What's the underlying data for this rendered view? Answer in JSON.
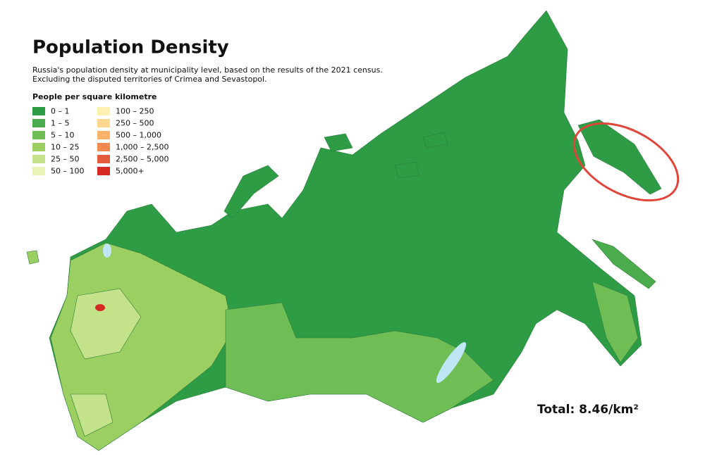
{
  "header": {
    "title": "Population Density",
    "subtitle": [
      "Russia's population density at municipality level, based on the results of the 2021 census.",
      "Excluding the disputed territories of Crimea and Sevastopol."
    ]
  },
  "legend": {
    "title": "People per square kilometre",
    "items": [
      {
        "label": "0 – 1",
        "color": "#2e9c45"
      },
      {
        "label": "1 – 5",
        "color": "#4aac4c"
      },
      {
        "label": "5 – 10",
        "color": "#6fbe55"
      },
      {
        "label": "10 – 25",
        "color": "#9ccf62"
      },
      {
        "label": "25 – 50",
        "color": "#c4e28a"
      },
      {
        "label": "50 – 100",
        "color": "#e8f3b6"
      },
      {
        "label": "100 – 250",
        "color": "#fdf0b0"
      },
      {
        "label": "250 – 500",
        "color": "#fdd690"
      },
      {
        "label": "500 – 1,000",
        "color": "#f9b26a"
      },
      {
        "label": "1,000 – 2,500",
        "color": "#f08a4e"
      },
      {
        "label": "2,500 – 5,000",
        "color": "#e65a3c"
      },
      {
        "label": "5,000+",
        "color": "#d42a22"
      }
    ]
  },
  "total": "Total: 8.46/km²"
}
